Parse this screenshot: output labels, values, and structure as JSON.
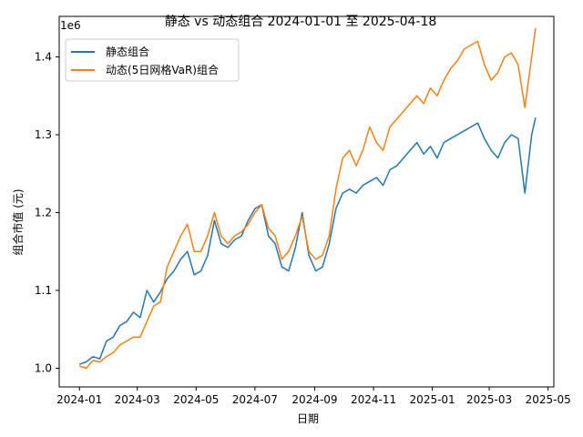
{
  "chart_data": {
    "type": "line",
    "title": "静态 vs 动态组合 2024-01-01 至 2025-04-18",
    "xlabel": "日期",
    "ylabel": "组合市值 (元)",
    "y_offset_label": "1e6",
    "xlim": [
      "2023-12-11",
      "2025-05-07"
    ],
    "ylim": [
      0.976,
      1.452
    ],
    "x_ticks": [
      "2024-01",
      "2024-03",
      "2024-05",
      "2024-07",
      "2024-09",
      "2024-11",
      "2025-01",
      "2025-03",
      "2025-05"
    ],
    "x_tick_dates": [
      "2024-01-01",
      "2024-03-01",
      "2024-05-01",
      "2024-07-01",
      "2024-09-01",
      "2024-11-01",
      "2025-01-01",
      "2025-03-01",
      "2025-05-01"
    ],
    "y_ticks": [
      1.0,
      1.1,
      1.2,
      1.3,
      1.4
    ],
    "y_tick_labels": [
      "1.0",
      "1.1",
      "1.2",
      "1.3",
      "1.4"
    ],
    "grid": false,
    "legend_position": "upper-left",
    "series": [
      {
        "name": "静态组合",
        "color": "#1f77b4",
        "points": [
          [
            "2024-01-01",
            1.005
          ],
          [
            "2024-01-08",
            1.008
          ],
          [
            "2024-01-15",
            1.015
          ],
          [
            "2024-01-22",
            1.012
          ],
          [
            "2024-01-29",
            1.035
          ],
          [
            "2024-02-05",
            1.04
          ],
          [
            "2024-02-12",
            1.055
          ],
          [
            "2024-02-19",
            1.06
          ],
          [
            "2024-02-26",
            1.072
          ],
          [
            "2024-03-04",
            1.065
          ],
          [
            "2024-03-11",
            1.1
          ],
          [
            "2024-03-18",
            1.085
          ],
          [
            "2024-03-25",
            1.098
          ],
          [
            "2024-04-01",
            1.115
          ],
          [
            "2024-04-08",
            1.125
          ],
          [
            "2024-04-15",
            1.14
          ],
          [
            "2024-04-22",
            1.15
          ],
          [
            "2024-04-29",
            1.12
          ],
          [
            "2024-05-06",
            1.125
          ],
          [
            "2024-05-13",
            1.145
          ],
          [
            "2024-05-20",
            1.19
          ],
          [
            "2024-05-27",
            1.16
          ],
          [
            "2024-06-03",
            1.155
          ],
          [
            "2024-06-10",
            1.165
          ],
          [
            "2024-06-17",
            1.17
          ],
          [
            "2024-06-24",
            1.19
          ],
          [
            "2024-07-01",
            1.205
          ],
          [
            "2024-07-08",
            1.21
          ],
          [
            "2024-07-15",
            1.17
          ],
          [
            "2024-07-22",
            1.16
          ],
          [
            "2024-07-29",
            1.13
          ],
          [
            "2024-08-05",
            1.125
          ],
          [
            "2024-08-12",
            1.155
          ],
          [
            "2024-08-19",
            1.2
          ],
          [
            "2024-08-26",
            1.145
          ],
          [
            "2024-09-02",
            1.125
          ],
          [
            "2024-09-09",
            1.13
          ],
          [
            "2024-09-16",
            1.16
          ],
          [
            "2024-09-23",
            1.205
          ],
          [
            "2024-09-30",
            1.225
          ],
          [
            "2024-10-07",
            1.23
          ],
          [
            "2024-10-14",
            1.225
          ],
          [
            "2024-10-21",
            1.235
          ],
          [
            "2024-10-28",
            1.24
          ],
          [
            "2024-11-04",
            1.245
          ],
          [
            "2024-11-11",
            1.235
          ],
          [
            "2024-11-18",
            1.255
          ],
          [
            "2024-11-25",
            1.26
          ],
          [
            "2024-12-02",
            1.27
          ],
          [
            "2024-12-09",
            1.28
          ],
          [
            "2024-12-16",
            1.29
          ],
          [
            "2024-12-23",
            1.275
          ],
          [
            "2024-12-30",
            1.285
          ],
          [
            "2025-01-06",
            1.27
          ],
          [
            "2025-01-13",
            1.29
          ],
          [
            "2025-01-20",
            1.295
          ],
          [
            "2025-01-27",
            1.3
          ],
          [
            "2025-02-03",
            1.305
          ],
          [
            "2025-02-10",
            1.31
          ],
          [
            "2025-02-17",
            1.315
          ],
          [
            "2025-02-24",
            1.295
          ],
          [
            "2025-03-03",
            1.28
          ],
          [
            "2025-03-10",
            1.27
          ],
          [
            "2025-03-17",
            1.29
          ],
          [
            "2025-03-24",
            1.3
          ],
          [
            "2025-03-31",
            1.295
          ],
          [
            "2025-04-07",
            1.225
          ],
          [
            "2025-04-14",
            1.3
          ],
          [
            "2025-04-18",
            1.322
          ]
        ]
      },
      {
        "name": "动态(5日网格VaR)组合",
        "color": "#ff7f0e",
        "points": [
          [
            "2024-01-01",
            1.003
          ],
          [
            "2024-01-08",
            1.0
          ],
          [
            "2024-01-15",
            1.01
          ],
          [
            "2024-01-22",
            1.008
          ],
          [
            "2024-01-29",
            1.015
          ],
          [
            "2024-02-05",
            1.02
          ],
          [
            "2024-02-12",
            1.03
          ],
          [
            "2024-02-19",
            1.035
          ],
          [
            "2024-02-26",
            1.04
          ],
          [
            "2024-03-04",
            1.04
          ],
          [
            "2024-03-11",
            1.06
          ],
          [
            "2024-03-18",
            1.08
          ],
          [
            "2024-03-25",
            1.085
          ],
          [
            "2024-04-01",
            1.13
          ],
          [
            "2024-04-08",
            1.15
          ],
          [
            "2024-04-15",
            1.17
          ],
          [
            "2024-04-22",
            1.185
          ],
          [
            "2024-04-29",
            1.15
          ],
          [
            "2024-05-06",
            1.15
          ],
          [
            "2024-05-13",
            1.17
          ],
          [
            "2024-05-20",
            1.2
          ],
          [
            "2024-05-27",
            1.17
          ],
          [
            "2024-06-03",
            1.16
          ],
          [
            "2024-06-10",
            1.17
          ],
          [
            "2024-06-17",
            1.175
          ],
          [
            "2024-06-24",
            1.185
          ],
          [
            "2024-07-01",
            1.2
          ],
          [
            "2024-07-08",
            1.21
          ],
          [
            "2024-07-15",
            1.18
          ],
          [
            "2024-07-22",
            1.17
          ],
          [
            "2024-07-29",
            1.14
          ],
          [
            "2024-08-05",
            1.15
          ],
          [
            "2024-08-12",
            1.17
          ],
          [
            "2024-08-19",
            1.195
          ],
          [
            "2024-08-26",
            1.15
          ],
          [
            "2024-09-02",
            1.14
          ],
          [
            "2024-09-09",
            1.145
          ],
          [
            "2024-09-16",
            1.17
          ],
          [
            "2024-09-23",
            1.23
          ],
          [
            "2024-09-30",
            1.27
          ],
          [
            "2024-10-07",
            1.28
          ],
          [
            "2024-10-14",
            1.26
          ],
          [
            "2024-10-21",
            1.28
          ],
          [
            "2024-10-28",
            1.31
          ],
          [
            "2024-11-04",
            1.29
          ],
          [
            "2024-11-11",
            1.28
          ],
          [
            "2024-11-18",
            1.31
          ],
          [
            "2024-11-25",
            1.32
          ],
          [
            "2024-12-02",
            1.33
          ],
          [
            "2024-12-09",
            1.34
          ],
          [
            "2024-12-16",
            1.35
          ],
          [
            "2024-12-23",
            1.34
          ],
          [
            "2024-12-30",
            1.36
          ],
          [
            "2025-01-06",
            1.35
          ],
          [
            "2025-01-13",
            1.37
          ],
          [
            "2025-01-20",
            1.385
          ],
          [
            "2025-01-27",
            1.395
          ],
          [
            "2025-02-03",
            1.41
          ],
          [
            "2025-02-10",
            1.415
          ],
          [
            "2025-02-17",
            1.42
          ],
          [
            "2025-02-24",
            1.39
          ],
          [
            "2025-03-03",
            1.37
          ],
          [
            "2025-03-10",
            1.38
          ],
          [
            "2025-03-17",
            1.4
          ],
          [
            "2025-03-24",
            1.405
          ],
          [
            "2025-03-31",
            1.39
          ],
          [
            "2025-04-07",
            1.335
          ],
          [
            "2025-04-14",
            1.4
          ],
          [
            "2025-04-18",
            1.437
          ]
        ]
      }
    ]
  }
}
